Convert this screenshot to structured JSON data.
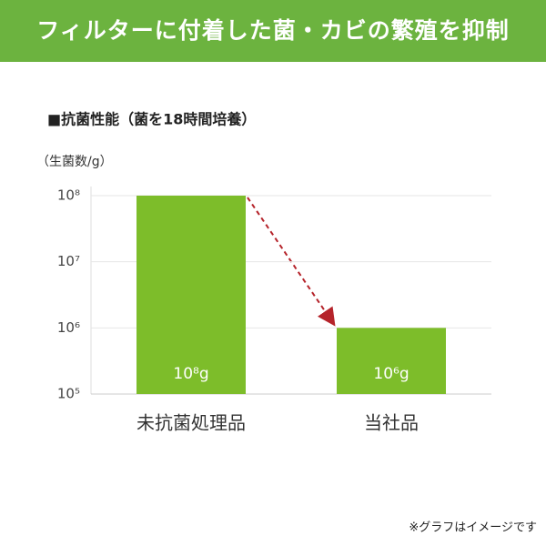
{
  "header": {
    "title": "フィルターに付着した菌・カビの繁殖を抑制"
  },
  "chart_data": {
    "type": "bar",
    "title": "■抗菌性能（菌を18時間培養）",
    "y_label": "（生菌数/g）",
    "categories": [
      "未抗菌処理品",
      "当社品"
    ],
    "values": [
      100000000,
      1000000
    ],
    "value_labels": [
      "10⁸g",
      "10⁶g"
    ],
    "color": "#7dbd2a",
    "log_scale": true,
    "grid": true,
    "ylim": [
      100000,
      100000000
    ],
    "yticks": [
      {
        "value": 100000,
        "label": "10⁵"
      },
      {
        "value": 1000000,
        "label": "10⁶"
      },
      {
        "value": 10000000,
        "label": "10⁷"
      },
      {
        "value": 100000000,
        "label": "10⁸"
      }
    ],
    "note": "※グラフはイメージです"
  }
}
